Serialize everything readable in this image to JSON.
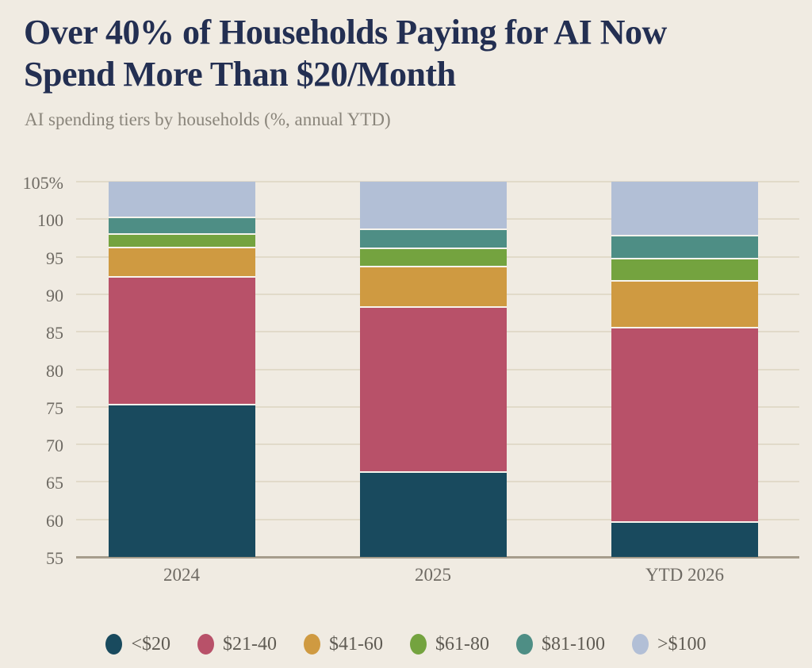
{
  "header": {
    "title_line1": "Over 40% of Households Paying for AI Now",
    "title_line2": "Spend More Than $20/Month",
    "subtitle": "AI spending tiers by households (%, annual YTD)"
  },
  "chart_data": {
    "type": "bar",
    "stacked": true,
    "title": "Over 40% of Households Paying for AI Now Spend More Than $20/Month",
    "subtitle": "AI spending tiers by households (%, annual YTD)",
    "categories": [
      "2024",
      "2025",
      "YTD 2026"
    ],
    "xlabel": "",
    "ylabel": "AI spending tiers by households (%)",
    "ylim": [
      55,
      105
    ],
    "baseline": 55,
    "grid": true,
    "legend_position": "bottom",
    "ytick_labels": [
      "105%",
      "100",
      "95",
      "90",
      "85",
      "80",
      "75",
      "70",
      "65",
      "60",
      "55"
    ],
    "ytick_values": [
      105,
      100,
      95,
      90,
      85,
      80,
      75,
      70,
      65,
      60,
      55
    ],
    "series": [
      {
        "name": "<$20",
        "color": "#194a5e",
        "values": [
          75.3,
          66.3,
          59.7
        ],
        "cumulative_top": [
          75.3,
          66.3,
          59.7
        ]
      },
      {
        "name": "$21-40",
        "color": "#b85169",
        "values": [
          17.0,
          22.0,
          25.8
        ],
        "cumulative_top": [
          92.3,
          88.3,
          85.5
        ]
      },
      {
        "name": "$41-60",
        "color": "#cf9a41",
        "values": [
          3.9,
          5.4,
          6.3
        ],
        "cumulative_top": [
          96.2,
          93.7,
          91.8
        ]
      },
      {
        "name": "$61-80",
        "color": "#74a33f",
        "values": [
          1.8,
          2.4,
          2.9
        ],
        "cumulative_top": [
          98.0,
          96.1,
          94.7
        ]
      },
      {
        "name": "$81-100",
        "color": "#4e8e85",
        "values": [
          2.2,
          2.6,
          3.1
        ],
        "cumulative_top": [
          100.2,
          98.7,
          97.8
        ]
      },
      {
        "name": ">$100",
        "color": "#b2bfd6",
        "values": [
          4.8,
          6.3,
          7.2
        ],
        "cumulative_top": [
          105,
          105,
          105
        ]
      }
    ]
  }
}
